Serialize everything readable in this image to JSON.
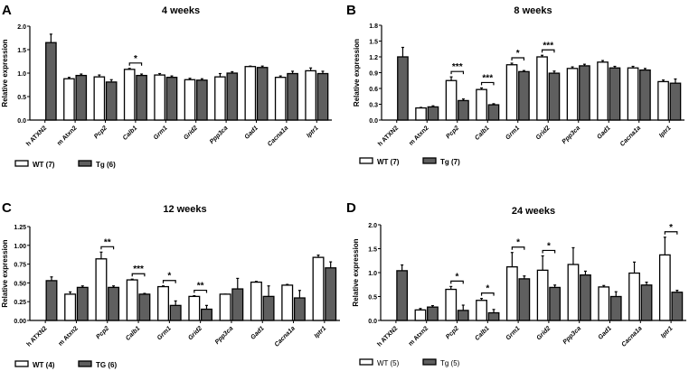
{
  "chart_data": [
    {
      "type": "bar",
      "panel_label": "A",
      "title": "4 weeks",
      "ylabel": "Relative expression",
      "ylim": [
        0,
        2.0
      ],
      "yticks": [
        0,
        0.5,
        1.0,
        1.5,
        2.0
      ],
      "ytick_labels": [
        "0.0",
        "0.5",
        "1.0",
        "1.5",
        "2.0"
      ],
      "categories": [
        "h ATXN2",
        "m Atxn2",
        "Pcp2",
        "Calb1",
        "Grm1",
        "Grid2",
        "Ppp3ca",
        "Gad1",
        "Cacna1a",
        "Iptr1"
      ],
      "series": [
        {
          "name": "WT (7)",
          "color": "#ffffff",
          "values": [
            null,
            0.88,
            0.92,
            1.08,
            0.96,
            0.86,
            0.92,
            1.14,
            0.91,
            1.05
          ],
          "errors": [
            null,
            0.03,
            0.04,
            0.02,
            0.03,
            0.03,
            0.07,
            0.01,
            0.03,
            0.06
          ]
        },
        {
          "name": "Tg (6)",
          "color": "#5f5f5f",
          "values": [
            1.65,
            0.95,
            0.81,
            0.95,
            0.91,
            0.85,
            1.0,
            1.12,
            0.99,
            0.99
          ],
          "errors": [
            0.18,
            0.03,
            0.05,
            0.03,
            0.03,
            0.03,
            0.03,
            0.03,
            0.05,
            0.05
          ]
        }
      ],
      "significance": [
        {
          "category": "Calb1",
          "label": "*"
        }
      ]
    },
    {
      "type": "bar",
      "panel_label": "B",
      "title": "8 weeks",
      "ylabel": "Relative expression",
      "ylim": [
        0,
        1.8
      ],
      "yticks": [
        0,
        0.3,
        0.6,
        0.9,
        1.2,
        1.5,
        1.8
      ],
      "ytick_labels": [
        "0.0",
        "0.3",
        "0.6",
        "0.9",
        "1.2",
        "1.5",
        "1.8"
      ],
      "categories": [
        "h ATXN2",
        "m Atxn2",
        "Pcp2",
        "Calb1",
        "Grm1",
        "Grid2",
        "Ppp3ca",
        "Gad1",
        "Cacna1a",
        "Iptr1"
      ],
      "series": [
        {
          "name": "WT (7)",
          "color": "#ffffff",
          "values": [
            null,
            0.23,
            0.75,
            0.58,
            1.05,
            1.2,
            0.98,
            1.1,
            0.99,
            0.73
          ],
          "errors": [
            null,
            0.01,
            0.07,
            0.03,
            0.03,
            0.03,
            0.03,
            0.03,
            0.03,
            0.03
          ]
        },
        {
          "name": "Tg (7)",
          "color": "#5f5f5f",
          "values": [
            1.2,
            0.25,
            0.37,
            0.29,
            0.92,
            0.89,
            1.03,
            0.99,
            0.95,
            0.7
          ],
          "errors": [
            0.18,
            0.02,
            0.03,
            0.02,
            0.02,
            0.04,
            0.03,
            0.03,
            0.03,
            0.08
          ]
        }
      ],
      "significance": [
        {
          "category": "Pcp2",
          "label": "***"
        },
        {
          "category": "Calb1",
          "label": "***"
        },
        {
          "category": "Grm1",
          "label": "*"
        },
        {
          "category": "Grid2",
          "label": "***"
        }
      ]
    },
    {
      "type": "bar",
      "panel_label": "C",
      "title": "12 weeks",
      "ylabel": "Relative expression",
      "ylim": [
        0,
        1.25
      ],
      "yticks": [
        0,
        0.25,
        0.5,
        0.75,
        1.0,
        1.25
      ],
      "ytick_labels": [
        "0.00",
        "0.25",
        "0.50",
        "0.75",
        "1.00",
        "1.25"
      ],
      "categories": [
        "h ATXN2",
        "m Atxn2",
        "Pcp2",
        "Calb1",
        "Grm1",
        "Grid2",
        "Ppp3ca",
        "Gad1",
        "Cacna1a",
        "Iptr1"
      ],
      "series": [
        {
          "name": "WT (4)",
          "color": "#ffffff",
          "values": [
            null,
            0.35,
            0.82,
            0.54,
            0.45,
            0.32,
            0.35,
            0.51,
            0.47,
            0.84
          ],
          "errors": [
            null,
            0.03,
            0.09,
            0.01,
            0.01,
            0.01,
            0.0,
            0.01,
            0.01,
            0.03
          ]
        },
        {
          "name": "TG (6)",
          "color": "#5f5f5f",
          "values": [
            0.53,
            0.44,
            0.44,
            0.35,
            0.2,
            0.15,
            0.42,
            0.32,
            0.3,
            0.7
          ],
          "errors": [
            0.05,
            0.02,
            0.02,
            0.01,
            0.06,
            0.05,
            0.14,
            0.14,
            0.1,
            0.08
          ]
        }
      ],
      "significance": [
        {
          "category": "Pcp2",
          "label": "**"
        },
        {
          "category": "Calb1",
          "label": "***"
        },
        {
          "category": "Grm1",
          "label": "*"
        },
        {
          "category": "Grid2",
          "label": "**"
        }
      ]
    },
    {
      "type": "bar",
      "panel_label": "D",
      "title": "24 weeks",
      "ylabel": "Relative expression",
      "ylim": [
        0,
        2.0
      ],
      "yticks": [
        0,
        0.5,
        1.0,
        1.5,
        2.0
      ],
      "ytick_labels": [
        "0.0",
        "0.5",
        "1.0",
        "1.5",
        "2.0"
      ],
      "categories": [
        "h ATXN2",
        "m Atxn2",
        "Pcp2",
        "Calb1",
        "Grm1",
        "Grid2",
        "Ppp3ca",
        "Gad1",
        "Cacna1a",
        "Iptr1"
      ],
      "series": [
        {
          "name": "WT (5)",
          "color": "#ffffff",
          "values": [
            null,
            0.22,
            0.65,
            0.42,
            1.12,
            1.05,
            1.17,
            0.7,
            0.99,
            1.37
          ],
          "errors": [
            null,
            0.03,
            0.06,
            0.04,
            0.3,
            0.3,
            0.35,
            0.03,
            0.23,
            0.37
          ]
        },
        {
          "name": "Tg (5)",
          "color": "#5f5f5f",
          "values": [
            1.04,
            0.28,
            0.21,
            0.16,
            0.87,
            0.69,
            0.95,
            0.5,
            0.74,
            0.59
          ],
          "errors": [
            0.12,
            0.03,
            0.11,
            0.07,
            0.06,
            0.05,
            0.08,
            0.1,
            0.06,
            0.04
          ]
        }
      ],
      "significance": [
        {
          "category": "Pcp2",
          "label": "*"
        },
        {
          "category": "Calb1",
          "label": "*"
        },
        {
          "category": "Grm1",
          "label": "*"
        },
        {
          "category": "Grid2",
          "label": "*"
        },
        {
          "category": "Iptr1",
          "label": "*"
        }
      ]
    }
  ]
}
